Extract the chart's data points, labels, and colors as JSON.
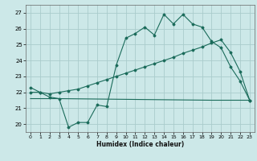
{
  "title": "",
  "xlabel": "Humidex (Indice chaleur)",
  "bg_color": "#cce8e8",
  "grid_color": "#aacccc",
  "line_color": "#1a6b5a",
  "xlim": [
    -0.5,
    23.5
  ],
  "ylim": [
    19.5,
    27.5
  ],
  "yticks": [
    20,
    21,
    22,
    23,
    24,
    25,
    26,
    27
  ],
  "xticks": [
    0,
    1,
    2,
    3,
    4,
    5,
    6,
    7,
    8,
    9,
    10,
    11,
    12,
    13,
    14,
    15,
    16,
    17,
    18,
    19,
    20,
    21,
    22,
    23
  ],
  "line1_x": [
    0,
    1,
    2,
    3,
    4,
    5,
    6,
    7,
    8,
    9,
    10,
    11,
    12,
    13,
    14,
    15,
    16,
    17,
    18,
    19,
    20,
    21,
    22,
    23
  ],
  "line1_y": [
    22.3,
    22.0,
    21.7,
    21.6,
    19.8,
    20.1,
    20.1,
    21.2,
    21.1,
    23.7,
    25.4,
    25.7,
    26.1,
    25.6,
    26.9,
    26.3,
    26.9,
    26.3,
    26.1,
    25.2,
    24.8,
    23.6,
    22.7,
    21.5
  ],
  "line2_x": [
    0,
    1,
    2,
    3,
    4,
    5,
    6,
    7,
    8,
    9,
    10,
    11,
    12,
    13,
    14,
    15,
    16,
    17,
    18,
    19,
    20,
    21,
    22,
    23
  ],
  "line2_y": [
    22.0,
    22.0,
    21.9,
    22.0,
    22.1,
    22.2,
    22.4,
    22.6,
    22.8,
    23.0,
    23.2,
    23.4,
    23.6,
    23.8,
    24.0,
    24.2,
    24.45,
    24.65,
    24.85,
    25.1,
    25.3,
    24.5,
    23.3,
    21.5
  ],
  "line3_x": [
    0,
    3,
    19,
    23
  ],
  "line3_y": [
    21.6,
    21.6,
    21.5,
    21.5
  ]
}
